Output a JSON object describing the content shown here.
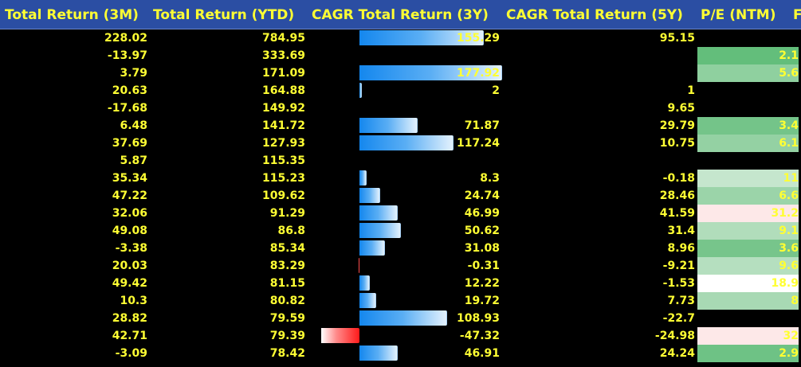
{
  "headers": [
    "Total Return (3M)",
    "Total Return (YTD)",
    "CAGR Total Return (3Y)",
    "CAGR Total Return (5Y)",
    "P/E (NTM)",
    "F"
  ],
  "bar_scale_max": 177.92,
  "bar_neg_scale": 47.32,
  "colors": {
    "header_bg": "#2b4ea3",
    "text": "#ffff33",
    "bar_positive": "#1487ee",
    "bar_negative": "#ff1a1a",
    "pe_scale_low": "#63be7b",
    "pe_scale_high": "#ffffff",
    "pe_scale_over": "#fde8e8"
  },
  "rows": [
    {
      "r3m": "228.02",
      "ytd": "784.95",
      "cagr3y": "155.29",
      "cagr3y_value": 155.29,
      "cagr5y": "95.15",
      "pe": "",
      "pe_color": ""
    },
    {
      "r3m": "-13.97",
      "ytd": "333.69",
      "cagr3y": "",
      "cagr3y_value": null,
      "cagr5y": "",
      "pe": "2.1",
      "pe_color": "#63be7b"
    },
    {
      "r3m": "3.79",
      "ytd": "171.09",
      "cagr3y": "177.92",
      "cagr3y_value": 177.92,
      "cagr5y": "",
      "pe": "5.6",
      "pe_color": "#8fd09f"
    },
    {
      "r3m": "20.63",
      "ytd": "164.88",
      "cagr3y": "2",
      "cagr3y_value": 2,
      "cagr5y": "1",
      "pe": "",
      "pe_color": ""
    },
    {
      "r3m": "-17.68",
      "ytd": "149.92",
      "cagr3y": "",
      "cagr3y_value": null,
      "cagr5y": "9.65",
      "pe": "",
      "pe_color": ""
    },
    {
      "r3m": "6.48",
      "ytd": "141.72",
      "cagr3y": "71.87",
      "cagr3y_value": 71.87,
      "cagr5y": "29.79",
      "pe": "3.4",
      "pe_color": "#74c489"
    },
    {
      "r3m": "37.69",
      "ytd": "127.93",
      "cagr3y": "117.24",
      "cagr3y_value": 117.24,
      "cagr5y": "10.75",
      "pe": "6.1",
      "pe_color": "#94d1a3"
    },
    {
      "r3m": "5.87",
      "ytd": "115.35",
      "cagr3y": "",
      "cagr3y_value": null,
      "cagr5y": "",
      "pe": "",
      "pe_color": ""
    },
    {
      "r3m": "35.34",
      "ytd": "115.23",
      "cagr3y": "8.3",
      "cagr3y_value": 8.3,
      "cagr5y": "-0.18",
      "pe": "11",
      "pe_color": "#c5e6cd"
    },
    {
      "r3m": "47.22",
      "ytd": "109.62",
      "cagr3y": "24.74",
      "cagr3y_value": 24.74,
      "cagr5y": "28.46",
      "pe": "6.6",
      "pe_color": "#9bd4a9"
    },
    {
      "r3m": "32.06",
      "ytd": "91.29",
      "cagr3y": "46.99",
      "cagr3y_value": 46.99,
      "cagr5y": "41.59",
      "pe": "31.2",
      "pe_color": "#fde8e8"
    },
    {
      "r3m": "49.08",
      "ytd": "86.8",
      "cagr3y": "50.62",
      "cagr3y_value": 50.62,
      "cagr5y": "31.4",
      "pe": "9.1",
      "pe_color": "#b1ddbb"
    },
    {
      "r3m": "-3.38",
      "ytd": "85.34",
      "cagr3y": "31.08",
      "cagr3y_value": 31.08,
      "cagr5y": "8.96",
      "pe": "3.6",
      "pe_color": "#77c58b"
    },
    {
      "r3m": "20.03",
      "ytd": "83.29",
      "cagr3y": "-0.31",
      "cagr3y_value": -0.31,
      "cagr5y": "-9.21",
      "pe": "9.6",
      "pe_color": "#b5dfbf"
    },
    {
      "r3m": "49.42",
      "ytd": "81.15",
      "cagr3y": "12.22",
      "cagr3y_value": 12.22,
      "cagr5y": "-1.53",
      "pe": "18.9",
      "pe_color": "#ffffff"
    },
    {
      "r3m": "10.3",
      "ytd": "80.82",
      "cagr3y": "19.72",
      "cagr3y_value": 19.72,
      "cagr5y": "7.73",
      "pe": "8",
      "pe_color": "#a8d9b4"
    },
    {
      "r3m": "28.82",
      "ytd": "79.59",
      "cagr3y": "108.93",
      "cagr3y_value": 108.93,
      "cagr5y": "-22.7",
      "pe": "",
      "pe_color": ""
    },
    {
      "r3m": "42.71",
      "ytd": "79.39",
      "cagr3y": "-47.32",
      "cagr3y_value": -47.32,
      "cagr5y": "-24.98",
      "pe": "32",
      "pe_color": "#fde8e8"
    },
    {
      "r3m": "-3.09",
      "ytd": "78.42",
      "cagr3y": "46.91",
      "cagr3y_value": 46.91,
      "cagr5y": "24.24",
      "pe": "2.9",
      "pe_color": "#6ec285"
    }
  ]
}
